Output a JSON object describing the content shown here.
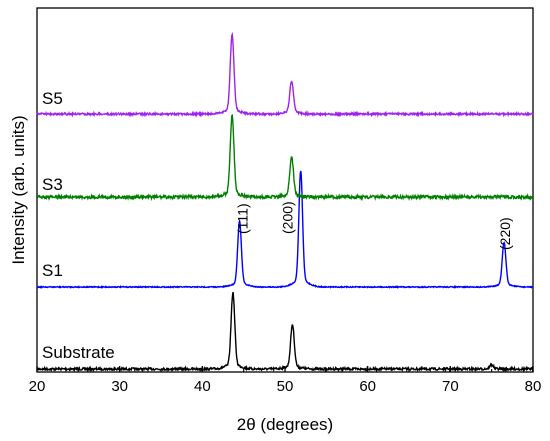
{
  "chart_data": {
    "type": "line",
    "title": "",
    "xlabel": "2θ (degrees)",
    "ylabel": "Intensity (arb. units)",
    "xlim": [
      20,
      80
    ],
    "xticks": [
      20,
      30,
      40,
      50,
      60,
      70,
      80
    ],
    "y_tick_labels_shown": false,
    "grid": false,
    "legend": "none",
    "series": [
      {
        "name": "Substrate",
        "color": "#000000",
        "peaks": [
          {
            "x": 43.7,
            "height": 72
          },
          {
            "x": 50.9,
            "height": 42
          },
          {
            "x": 75.0,
            "height": 4
          }
        ]
      },
      {
        "name": "S1",
        "color": "#0000ff",
        "peaks": [
          {
            "x": 44.5,
            "height": 62
          },
          {
            "x": 51.9,
            "height": 110
          },
          {
            "x": 76.5,
            "height": 42
          }
        ]
      },
      {
        "name": "S3",
        "color": "#008000",
        "peaks": [
          {
            "x": 43.6,
            "height": 77
          },
          {
            "x": 50.8,
            "height": 38
          }
        ]
      },
      {
        "name": "S5",
        "color": "#a020f0",
        "peaks": [
          {
            "x": 43.6,
            "height": 75
          },
          {
            "x": 50.8,
            "height": 31
          }
        ]
      }
    ],
    "annotations": [
      {
        "text": "(111)",
        "x": 44.5
      },
      {
        "text": "(200)",
        "x": 51.9
      },
      {
        "text": "(220)",
        "x": 76.5
      }
    ]
  }
}
